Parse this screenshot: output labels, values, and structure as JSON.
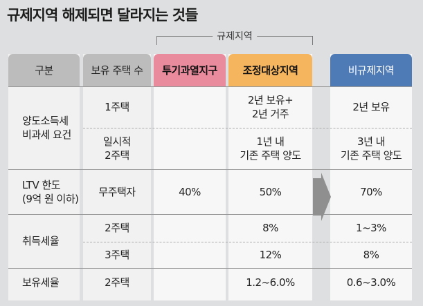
{
  "title": "규제지역 해제되면 달라지는 것들",
  "group_label": "규제지역",
  "headers": {
    "category": "구분",
    "houses": "보유 주택 수",
    "speculative": "투기과열지구",
    "adjusted": "조정대상지역",
    "non_regulated": "비규제지역"
  },
  "rows": {
    "tax_exempt": {
      "label_1": "양도소득세",
      "label_2": "비과세 요건",
      "r1": {
        "houses": "1주택",
        "adjusted_1": "2년 보유+",
        "adjusted_2": "2년 거주",
        "non_regulated": "2년 보유"
      },
      "r2": {
        "houses_1": "일시적",
        "houses_2": "2주택",
        "adjusted_1": "1년 내",
        "adjusted_2": "기존 주택 양도",
        "non_regulated_1": "3년 내",
        "non_regulated_2": "기존 주택 양도"
      }
    },
    "ltv": {
      "label_1": "LTV 한도",
      "label_2": "(9억 원 이하)",
      "houses": "무주택자",
      "speculative": "40%",
      "adjusted": "50%",
      "non_regulated": "70%"
    },
    "acquisition": {
      "label": "취득세율",
      "r1": {
        "houses": "2주택",
        "adjusted": "8%",
        "non_regulated": "1~3%"
      },
      "r2": {
        "houses": "3주택",
        "adjusted": "12%",
        "non_regulated": "8%"
      }
    },
    "holding": {
      "label": "보유세율",
      "houses": "2주택",
      "adjusted": "1.2~6.0%",
      "non_regulated": "0.6~3.0%"
    }
  },
  "colors": {
    "speculative_header": "#e98a9d",
    "adjusted_header": "#f5b55f",
    "non_regulated_header": "#4e7bb5",
    "gray_header": "#bcbcbc",
    "arrow": "#8f8f8f"
  },
  "icons": {
    "arrow": "right-arrow-icon"
  }
}
